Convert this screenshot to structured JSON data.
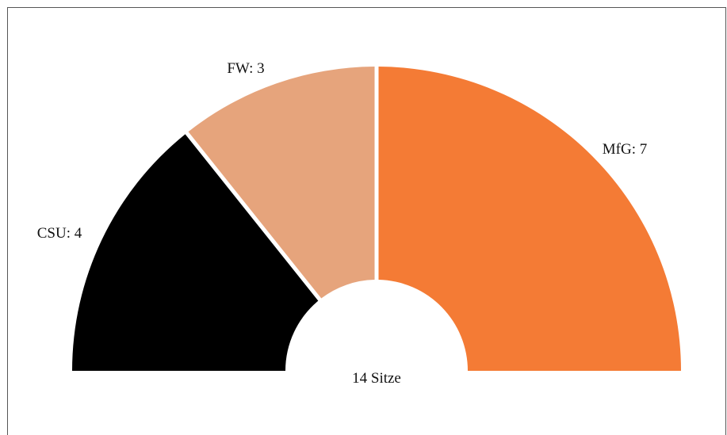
{
  "chart_data": {
    "type": "pie",
    "subtype": "semicircle-parliament",
    "title": "",
    "center_label": "14 Sitze",
    "total": 14,
    "series": [
      {
        "name": "CSU",
        "label": "CSU: 4",
        "value": 4,
        "color": "#000000"
      },
      {
        "name": "FW",
        "label": "FW: 3",
        "value": 3,
        "color": "#E6A47C"
      },
      {
        "name": "MfG",
        "label": "MfG: 7",
        "value": 7,
        "color": "#F47B35"
      }
    ],
    "legend": "none"
  }
}
